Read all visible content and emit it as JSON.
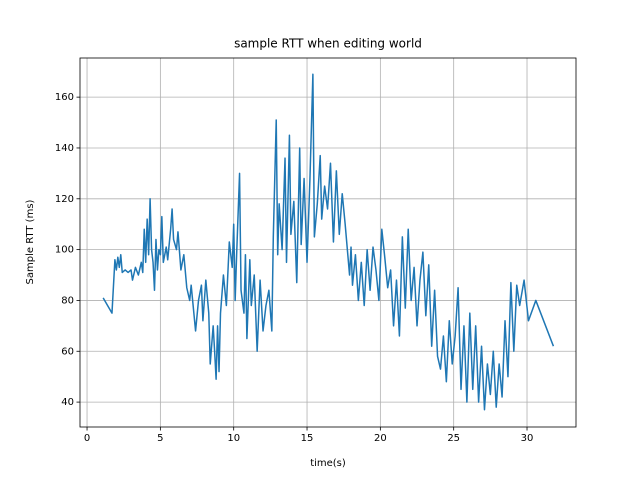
{
  "chart_data": {
    "type": "line",
    "title": "sample RTT when editing world",
    "x_label": "time(s)",
    "y_label": "Sample RTT (ms)",
    "color": "#1f77b4",
    "grid": true,
    "xlim": [
      -0.48,
      33.34
    ],
    "ylim": [
      30.2,
      175.4
    ],
    "xticks": [
      0,
      5,
      10,
      15,
      20,
      25,
      30
    ],
    "yticks": [
      40,
      60,
      80,
      100,
      120,
      140,
      160
    ],
    "x": [
      1.1,
      1.7,
      1.9,
      2.0,
      2.1,
      2.2,
      2.3,
      2.4,
      2.6,
      2.8,
      3.0,
      3.1,
      3.3,
      3.5,
      3.7,
      3.8,
      3.9,
      4.0,
      4.1,
      4.2,
      4.3,
      4.4,
      4.5,
      4.6,
      4.7,
      4.8,
      4.9,
      5.0,
      5.1,
      5.2,
      5.4,
      5.5,
      5.7,
      5.8,
      5.9,
      6.1,
      6.2,
      6.4,
      6.6,
      6.8,
      7.0,
      7.1,
      7.3,
      7.4,
      7.6,
      7.8,
      7.9,
      8.1,
      8.3,
      8.4,
      8.6,
      8.7,
      8.8,
      8.9,
      9.0,
      9.1,
      9.3,
      9.5,
      9.7,
      9.9,
      10.0,
      10.1,
      10.2,
      10.4,
      10.5,
      10.7,
      10.8,
      10.9,
      11.1,
      11.2,
      11.4,
      11.6,
      11.8,
      12.0,
      12.2,
      12.4,
      12.6,
      12.7,
      12.9,
      13.0,
      13.1,
      13.3,
      13.5,
      13.6,
      13.8,
      13.9,
      14.1,
      14.3,
      14.5,
      14.6,
      14.8,
      15.0,
      15.2,
      15.4,
      15.5,
      15.7,
      15.9,
      16.0,
      16.2,
      16.4,
      16.6,
      16.8,
      17.0,
      17.2,
      17.4,
      17.6,
      17.9,
      18.0,
      18.1,
      18.3,
      18.5,
      18.7,
      18.9,
      19.1,
      19.3,
      19.5,
      19.7,
      19.9,
      20.1,
      20.3,
      20.5,
      20.7,
      20.9,
      21.1,
      21.3,
      21.5,
      21.7,
      21.9,
      22.1,
      22.3,
      22.5,
      22.7,
      22.9,
      23.1,
      23.3,
      23.5,
      23.7,
      23.9,
      24.1,
      24.3,
      24.5,
      24.7,
      24.9,
      25.1,
      25.3,
      25.5,
      25.7,
      25.9,
      26.1,
      26.3,
      26.5,
      26.7,
      26.9,
      27.1,
      27.3,
      27.5,
      27.7,
      27.9,
      28.1,
      28.3,
      28.5,
      28.7,
      28.9,
      29.1,
      29.3,
      29.5,
      29.8,
      30.1,
      30.6,
      31.8
    ],
    "values": [
      81,
      75,
      96,
      92,
      97,
      93,
      98,
      91,
      92,
      91,
      92,
      88,
      93,
      90,
      95,
      91,
      108,
      95,
      112,
      98,
      120,
      100,
      95,
      84,
      104,
      92,
      100,
      98,
      113,
      95,
      101,
      96,
      108,
      116,
      104,
      100,
      107,
      92,
      98,
      85,
      80,
      86,
      74,
      68,
      80,
      86,
      72,
      88,
      75,
      55,
      70,
      60,
      49,
      70,
      52,
      75,
      90,
      78,
      103,
      93,
      110,
      80,
      98,
      130,
      84,
      75,
      98,
      65,
      96,
      78,
      90,
      60,
      88,
      68,
      78,
      84,
      68,
      105,
      151,
      98,
      118,
      100,
      136,
      95,
      145,
      106,
      119,
      87,
      140,
      102,
      128,
      95,
      128,
      169,
      105,
      118,
      137,
      112,
      125,
      116,
      134,
      103,
      131,
      106,
      122,
      110,
      90,
      101,
      86,
      98,
      80,
      95,
      78,
      100,
      84,
      101,
      92,
      80,
      108,
      97,
      85,
      92,
      70,
      88,
      66,
      105,
      77,
      108,
      80,
      93,
      70,
      88,
      99,
      74,
      94,
      62,
      84,
      58,
      53,
      66,
      48,
      72,
      55,
      66,
      85,
      45,
      70,
      40,
      75,
      45,
      70,
      40,
      62,
      37,
      55,
      43,
      60,
      38,
      55,
      42,
      72,
      50,
      87,
      60,
      86,
      78,
      88,
      72,
      80,
      62
    ]
  }
}
